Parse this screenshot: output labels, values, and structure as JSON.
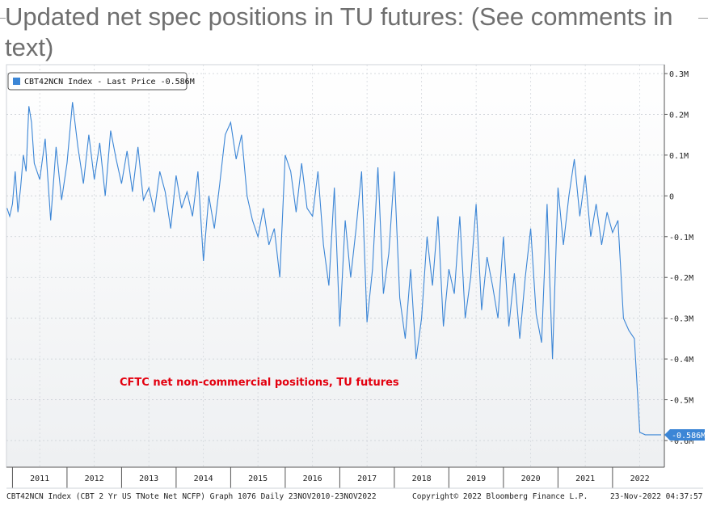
{
  "slide": {
    "title": "Updated net spec positions in TU futures: (See comments in text)"
  },
  "chart_data": {
    "type": "line",
    "legend": {
      "label": "CBT42NCN Index - Last Price -0.586M",
      "placement": "top-left"
    },
    "annotation": "CFTC net non-commercial positions, TU futures",
    "y_unit": "millions of contracts",
    "ylim": [
      -0.65,
      0.3
    ],
    "y_ticks": [
      0.3,
      0.2,
      0.1,
      0,
      -0.1,
      -0.2,
      -0.3,
      -0.4,
      -0.5,
      -0.6
    ],
    "y_tick_labels": [
      "0.3M",
      "0.2M",
      "0.1M",
      "0",
      "-0.1M",
      "-0.2M",
      "-0.3M",
      "-0.4M",
      "-0.5M",
      "-0.6M"
    ],
    "x_labels": [
      "2011",
      "2012",
      "2013",
      "2014",
      "2015",
      "2016",
      "2017",
      "2018",
      "2019",
      "2020",
      "2021",
      "2022"
    ],
    "last_value": -0.586,
    "last_value_label": "-0.586M",
    "grid": true,
    "series": [
      {
        "name": "CBT42NCN Index",
        "color": "#3c86d6",
        "x": [
          2010.9,
          2010.95,
          2011.0,
          2011.05,
          2011.1,
          2011.15,
          2011.2,
          2011.25,
          2011.3,
          2011.35,
          2011.4,
          2011.5,
          2011.6,
          2011.7,
          2011.8,
          2011.9,
          2012.0,
          2012.1,
          2012.2,
          2012.3,
          2012.4,
          2012.5,
          2012.6,
          2012.7,
          2012.8,
          2012.9,
          2013.0,
          2013.1,
          2013.2,
          2013.3,
          2013.4,
          2013.5,
          2013.6,
          2013.7,
          2013.8,
          2013.9,
          2014.0,
          2014.1,
          2014.2,
          2014.3,
          2014.4,
          2014.5,
          2014.6,
          2014.7,
          2014.8,
          2014.9,
          2015.0,
          2015.1,
          2015.2,
          2015.3,
          2015.4,
          2015.5,
          2015.6,
          2015.7,
          2015.8,
          2015.9,
          2016.0,
          2016.1,
          2016.2,
          2016.3,
          2016.4,
          2016.5,
          2016.6,
          2016.7,
          2016.8,
          2016.9,
          2017.0,
          2017.1,
          2017.2,
          2017.3,
          2017.4,
          2017.5,
          2017.6,
          2017.7,
          2017.8,
          2017.9,
          2018.0,
          2018.1,
          2018.2,
          2018.3,
          2018.4,
          2018.5,
          2018.6,
          2018.7,
          2018.8,
          2018.9,
          2019.0,
          2019.1,
          2019.2,
          2019.3,
          2019.4,
          2019.5,
          2019.6,
          2019.7,
          2019.8,
          2019.9,
          2020.0,
          2020.1,
          2020.2,
          2020.3,
          2020.4,
          2020.5,
          2020.6,
          2020.7,
          2020.8,
          2020.9,
          2021.0,
          2021.1,
          2021.2,
          2021.3,
          2021.4,
          2021.5,
          2021.6,
          2021.7,
          2021.8,
          2021.9,
          2022.0,
          2022.1,
          2022.2,
          2022.3,
          2022.4,
          2022.5,
          2022.6,
          2022.7,
          2022.8,
          2022.89
        ],
        "y": [
          -0.03,
          -0.05,
          -0.02,
          0.06,
          -0.04,
          0.02,
          0.1,
          0.06,
          0.22,
          0.18,
          0.08,
          0.04,
          0.14,
          -0.06,
          0.12,
          -0.01,
          0.08,
          0.23,
          0.12,
          0.03,
          0.15,
          0.04,
          0.13,
          0.0,
          0.16,
          0.09,
          0.03,
          0.11,
          0.01,
          0.12,
          -0.01,
          0.02,
          -0.04,
          0.06,
          0.01,
          -0.08,
          0.05,
          -0.03,
          0.01,
          -0.05,
          0.06,
          -0.16,
          0.0,
          -0.08,
          0.03,
          0.15,
          0.18,
          0.09,
          0.15,
          0.0,
          -0.06,
          -0.1,
          -0.03,
          -0.12,
          -0.08,
          -0.2,
          0.1,
          0.06,
          -0.04,
          0.08,
          -0.03,
          -0.05,
          0.06,
          -0.12,
          -0.22,
          0.02,
          -0.32,
          -0.06,
          -0.2,
          -0.08,
          0.06,
          -0.31,
          -0.18,
          0.07,
          -0.24,
          -0.14,
          0.06,
          -0.25,
          -0.35,
          -0.18,
          -0.4,
          -0.3,
          -0.1,
          -0.22,
          -0.05,
          -0.32,
          -0.18,
          -0.24,
          -0.05,
          -0.3,
          -0.2,
          -0.02,
          -0.28,
          -0.15,
          -0.22,
          -0.3,
          -0.1,
          -0.32,
          -0.19,
          -0.35,
          -0.2,
          -0.08,
          -0.29,
          -0.36,
          -0.02,
          -0.4,
          0.02,
          -0.12,
          0.0,
          0.09,
          -0.05,
          0.05,
          -0.1,
          -0.02,
          -0.12,
          -0.04,
          -0.09,
          -0.06,
          -0.3,
          -0.33,
          -0.35,
          -0.58,
          -0.586,
          -0.586,
          -0.586,
          -0.586
        ]
      }
    ]
  },
  "footer": {
    "left": "CBT42NCN Index (CBT 2 Yr US TNote Net NCFP) Graph 1076  Daily 23NOV2010-23NOV2022",
    "middle": "Copyright© 2022 Bloomberg Finance L.P.",
    "right": "23-Nov-2022 04:37:57"
  }
}
